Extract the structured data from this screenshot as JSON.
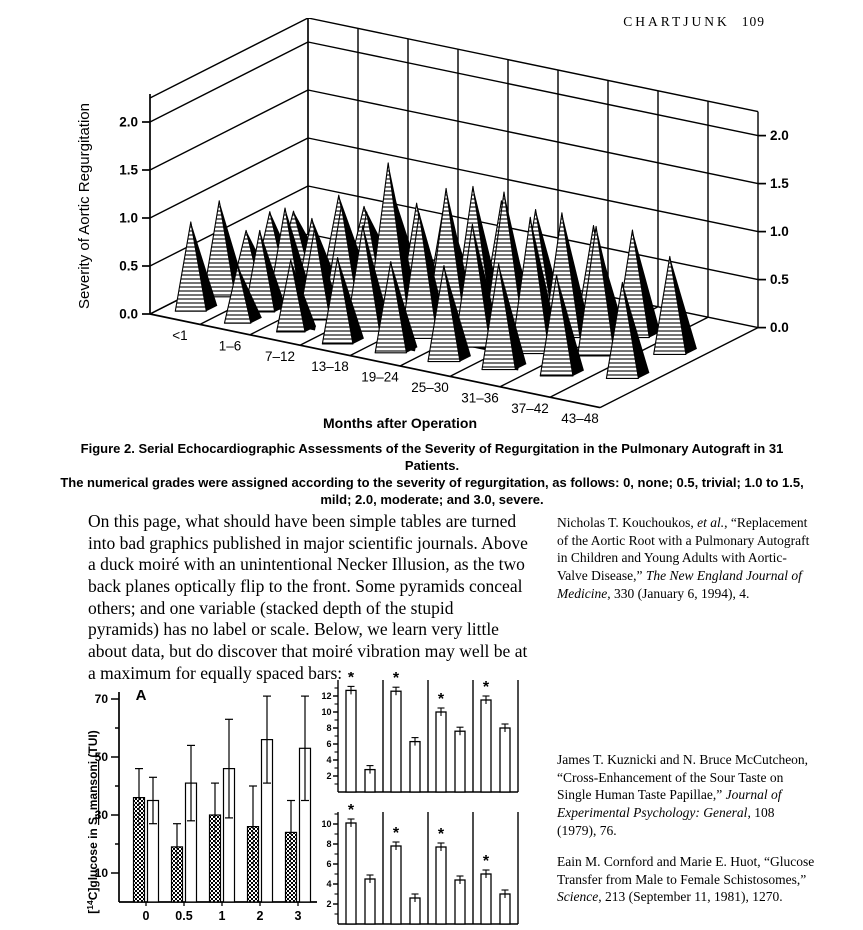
{
  "page": {
    "header": "CHARTJUNK",
    "page_number": "109"
  },
  "caption": {
    "line1": "Figure 2. Serial Echocardiographic Assessments of the Severity of Regurgitation in the Pulmonary Autograft in 31 Patients.",
    "line2": "The numerical grades were assigned according to the severity of regurgitation, as follows: 0, none; 0.5, trivial; 1.0 to 1.5, mild; 2.0, moderate; and 3.0, severe."
  },
  "body": {
    "paragraph": "On this page, what should have been simple tables are turned into bad graphics published in major scientific journals. Above a duck moiré with an unintentional Necker Illusion, as the two back planes optically flip to the front. Some pyramids conceal others; and one variable (stacked depth of the stupid pyramids) has no label or scale. Below, we learn very little about data, but do discover that moiré vibration may well be at a maximum for equally spaced bars:"
  },
  "citations": [
    {
      "segments": [
        {
          "t": "Nicholas T. Kouchoukos, "
        },
        {
          "t": "et al.",
          "i": true
        },
        {
          "t": ", “Replacement of the Aortic Root with a Pulmonary Autograft in Children and Young Adults with Aortic-Valve Disease,” "
        },
        {
          "t": "The New England Journal of Medicine",
          "i": true
        },
        {
          "t": ", 330 (January 6, 1994), 4."
        }
      ]
    },
    {
      "segments": [
        {
          "t": "James T. Kuznicki and N. Bruce McCutcheon, “Cross-Enhancement of the Sour Taste on Single Human Taste Papillae,” "
        },
        {
          "t": "Journal of Experimental Psychology: General",
          "i": true
        },
        {
          "t": ", 108 (1979), 76."
        }
      ]
    },
    {
      "segments": [
        {
          "t": "Eain M. Cornford and Marie E. Huot, “Glucose Transfer from Male to Female Schistosomes,” "
        },
        {
          "t": "Science",
          "i": true
        },
        {
          "t": ", 213 (September 11, 1981), 1270."
        }
      ]
    }
  ],
  "chart_data": [
    {
      "id": "pyramid-duck",
      "type": "3d-pyramid",
      "ylabel": "Severity of Aortic Regurgitation",
      "xlabel": "Months after Operation",
      "ylim": [
        0.0,
        2.0
      ],
      "y_ticks": [
        "0.0",
        "0.5",
        "1.0",
        "1.5",
        "2.0"
      ],
      "categories": [
        "<1",
        "1–6",
        "7–12",
        "13–18",
        "19–24",
        "25–30",
        "31–36",
        "37–42",
        "43–48"
      ],
      "depth_axis": "unlabeled, no scale",
      "pyramids": [
        {
          "col": 0,
          "t": 0.1,
          "h": 0.93
        },
        {
          "col": 0,
          "t": 0.28,
          "h": 1.0
        },
        {
          "col": 0,
          "t": 0.45,
          "h": 0.55
        },
        {
          "col": 0,
          "t": 0.6,
          "h": 0.62
        },
        {
          "col": 0,
          "t": 0.75,
          "h": 0.5
        },
        {
          "col": 1,
          "t": 0.08,
          "h": 0.6
        },
        {
          "col": 1,
          "t": 0.22,
          "h": 0.85
        },
        {
          "col": 1,
          "t": 0.38,
          "h": 0.95
        },
        {
          "col": 1,
          "t": 0.55,
          "h": 0.7
        },
        {
          "col": 1,
          "t": 0.72,
          "h": 0.8
        },
        {
          "col": 1,
          "t": 0.88,
          "h": 0.55
        },
        {
          "col": 2,
          "t": 0.1,
          "h": 0.75
        },
        {
          "col": 2,
          "t": 0.25,
          "h": 0.95
        },
        {
          "col": 2,
          "t": 0.42,
          "h": 1.05
        },
        {
          "col": 2,
          "t": 0.58,
          "h": 0.85
        },
        {
          "col": 2,
          "t": 0.75,
          "h": 0.9
        },
        {
          "col": 3,
          "t": 0.08,
          "h": 0.9
        },
        {
          "col": 3,
          "t": 0.24,
          "h": 1.1
        },
        {
          "col": 3,
          "t": 0.4,
          "h": 1.62
        },
        {
          "col": 3,
          "t": 0.58,
          "h": 1.05
        },
        {
          "col": 3,
          "t": 0.76,
          "h": 0.95
        },
        {
          "col": 4,
          "t": 0.1,
          "h": 0.95
        },
        {
          "col": 4,
          "t": 0.28,
          "h": 1.3
        },
        {
          "col": 4,
          "t": 0.45,
          "h": 1.42
        },
        {
          "col": 4,
          "t": 0.62,
          "h": 1.3
        },
        {
          "col": 4,
          "t": 0.8,
          "h": 1.0
        },
        {
          "col": 5,
          "t": 0.12,
          "h": 1.0
        },
        {
          "col": 5,
          "t": 0.3,
          "h": 1.28
        },
        {
          "col": 5,
          "t": 0.5,
          "h": 1.45
        },
        {
          "col": 5,
          "t": 0.7,
          "h": 1.1
        },
        {
          "col": 6,
          "t": 0.15,
          "h": 1.1
        },
        {
          "col": 6,
          "t": 0.35,
          "h": 1.42
        },
        {
          "col": 6,
          "t": 0.55,
          "h": 1.3
        },
        {
          "col": 6,
          "t": 0.75,
          "h": 1.0
        },
        {
          "col": 7,
          "t": 0.2,
          "h": 1.05
        },
        {
          "col": 7,
          "t": 0.45,
          "h": 1.35
        },
        {
          "col": 7,
          "t": 0.68,
          "h": 1.12
        },
        {
          "col": 8,
          "t": 0.3,
          "h": 1.0
        },
        {
          "col": 8,
          "t": 0.6,
          "h": 1.02
        }
      ],
      "shadow_dashes": [
        {
          "col": 1,
          "t": 0.3
        },
        {
          "col": 2,
          "t": 0.18
        },
        {
          "col": 2,
          "t": 0.52
        },
        {
          "col": 3,
          "t": 0.3
        },
        {
          "col": 3,
          "t": 0.62
        },
        {
          "col": 4,
          "t": 0.18
        },
        {
          "col": 4,
          "t": 0.5
        },
        {
          "col": 5,
          "t": 0.32
        },
        {
          "col": 6,
          "t": 0.2
        }
      ]
    },
    {
      "id": "glucose",
      "type": "bar",
      "panel_label": "A",
      "ylabel_parts": {
        "prefix": "[",
        "isotope": "14",
        "after": "C]glucose in ",
        "species": "S. mansoni",
        "suffix": " (TUI)"
      },
      "y_ticks": [
        10,
        30,
        50,
        70
      ],
      "ylim": [
        0,
        75
      ],
      "categories": [
        "0",
        "0.5",
        "1",
        "2",
        "3"
      ],
      "series": [
        {
          "name": "hatched",
          "values": [
            36,
            19,
            30,
            26,
            24
          ],
          "errors": [
            10,
            8,
            11,
            14,
            11
          ]
        },
        {
          "name": "open",
          "values": [
            35,
            41,
            46,
            56,
            53
          ],
          "errors": [
            8,
            13,
            17,
            15,
            18
          ]
        }
      ]
    },
    {
      "id": "taste",
      "type": "bar-2panel",
      "panels": [
        {
          "y_ticks": [
            2,
            4,
            6,
            8,
            10,
            12
          ],
          "ylim": [
            0,
            14
          ],
          "groups": [
            [
              12.7,
              2.8
            ],
            [
              12.6,
              6.3
            ],
            [
              10.0,
              7.6
            ],
            [
              11.5,
              8.0
            ]
          ],
          "error": 0.4,
          "starred_bar": 0
        },
        {
          "y_ticks": [
            2,
            4,
            6,
            8,
            10
          ],
          "ylim": [
            0,
            11.2
          ],
          "groups": [
            [
              10.1,
              4.5
            ],
            [
              7.8,
              2.6
            ],
            [
              7.7,
              4.4
            ],
            [
              5.0,
              3.0
            ]
          ],
          "error": 0.4,
          "starred_bar": 0
        }
      ],
      "star_glyph": "*"
    }
  ]
}
